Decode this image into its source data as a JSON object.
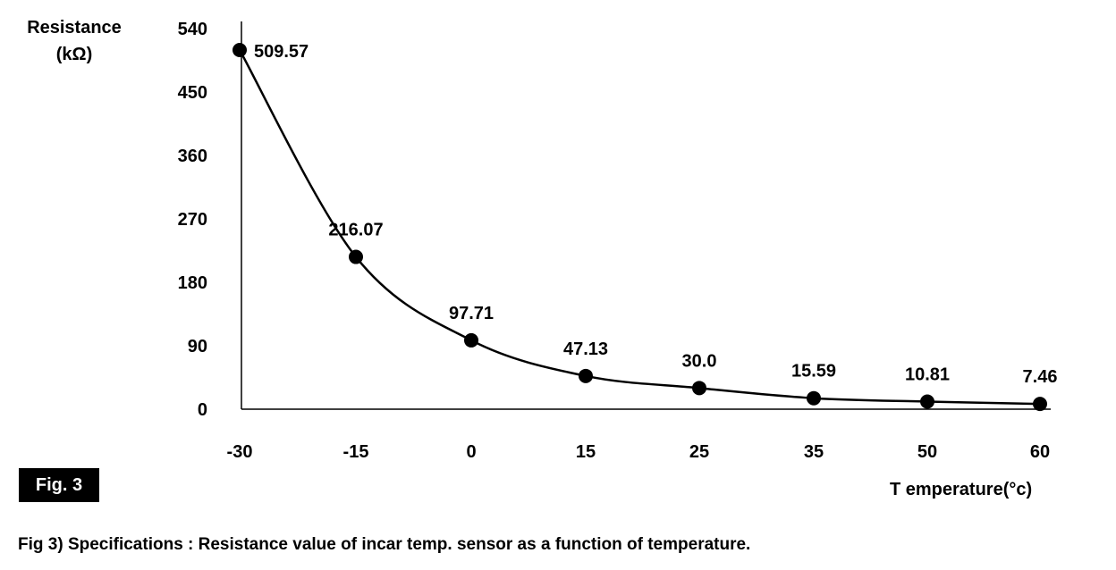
{
  "chart_data": {
    "type": "line",
    "ylabel_line1": "Resistance",
    "ylabel_line2": "(kΩ)",
    "xlabel": "T emperature(°c)",
    "x": [
      "-30",
      "-15",
      "0",
      "15",
      "25",
      "35",
      "50",
      "60"
    ],
    "values": [
      509.57,
      216.07,
      97.71,
      47.13,
      30.0,
      15.59,
      10.81,
      7.46
    ],
    "data_labels": [
      "509.57",
      "216.07",
      "97.71",
      "47.13",
      "30.0",
      "15.59",
      "10.81",
      "7.46"
    ],
    "yticks": [
      "540",
      "450",
      "360",
      "270",
      "180",
      "90",
      "0"
    ],
    "ylim": [
      0,
      540
    ],
    "grid": false,
    "colors": {
      "line": "#000000",
      "marker": "#000000"
    }
  },
  "figure": {
    "badge": "Fig. 3",
    "caption": "Fig 3) Specifications : Resistance value of incar temp. sensor as a function of temperature."
  }
}
